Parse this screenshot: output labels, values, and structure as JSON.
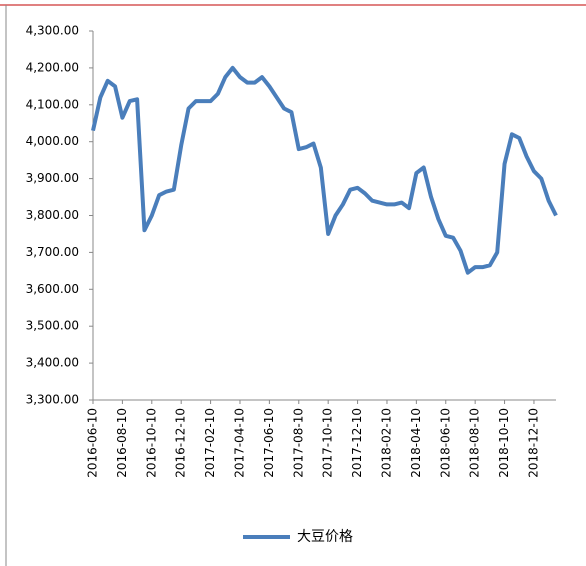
{
  "chart_data": {
    "type": "line",
    "categories": [
      "2016-06-10",
      null,
      null,
      null,
      "2016-08-10",
      null,
      null,
      null,
      "2016-10-10",
      null,
      null,
      null,
      "2016-12-10",
      null,
      null,
      null,
      "2017-02-10",
      null,
      null,
      null,
      "2017-04-10",
      null,
      null,
      null,
      "2017-06-10",
      null,
      null,
      null,
      "2017-08-10",
      null,
      null,
      null,
      "2017-10-10",
      null,
      null,
      null,
      "2017-12-10",
      null,
      null,
      null,
      "2018-02-10",
      null,
      null,
      null,
      "2018-04-10",
      null,
      null,
      null,
      "2018-06-10",
      null,
      null,
      null,
      "2018-08-10",
      null,
      null,
      null,
      "2018-10-10",
      null,
      null,
      null,
      "2018-12-10",
      null,
      null,
      null
    ],
    "series": [
      {
        "name": "大豆价格",
        "color": "#4a7ebb",
        "values": [
          4030,
          4120,
          4165,
          4150,
          4065,
          4110,
          4115,
          3760,
          3800,
          3855,
          3865,
          3870,
          3990,
          4090,
          4110,
          4110,
          4110,
          4130,
          4175,
          4200,
          4175,
          4160,
          4160,
          4175,
          4150,
          4120,
          4090,
          4080,
          3980,
          3985,
          3995,
          3930,
          3750,
          3800,
          3830,
          3870,
          3875,
          3860,
          3840,
          3835,
          3830,
          3830,
          3835,
          3820,
          3915,
          3930,
          3850,
          3790,
          3745,
          3740,
          3705,
          3645,
          3660,
          3660,
          3665,
          3700,
          3940,
          4020,
          4010,
          3960,
          3920,
          3900,
          3840,
          3800
        ]
      }
    ],
    "ylim": [
      3300,
      4300
    ],
    "yticks": [
      {
        "value": 3300,
        "label": "3,300.00"
      },
      {
        "value": 3400,
        "label": "3,400.00"
      },
      {
        "value": 3500,
        "label": "3,500.00"
      },
      {
        "value": 3600,
        "label": "3,600.00"
      },
      {
        "value": 3700,
        "label": "3,700.00"
      },
      {
        "value": 3800,
        "label": "3,800.00"
      },
      {
        "value": 3900,
        "label": "3,900.00"
      },
      {
        "value": 4000,
        "label": "4,000.00"
      },
      {
        "value": 4100,
        "label": "4,100.00"
      },
      {
        "value": 4200,
        "label": "4,200.00"
      },
      {
        "value": 4300,
        "label": "4,300.00"
      }
    ],
    "grid": false,
    "legend": "bottom"
  }
}
